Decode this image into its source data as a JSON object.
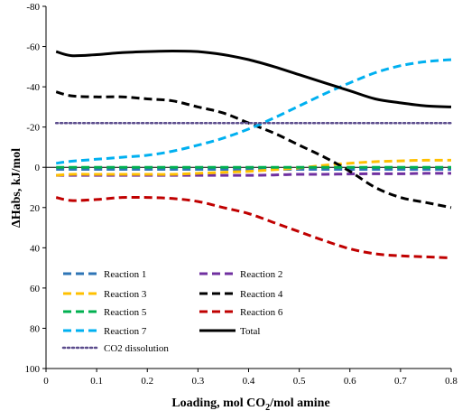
{
  "chart_data": {
    "type": "line",
    "title": "",
    "xlabel": "Loading, mol CO",
    "xlabel_sub": "2",
    "xlabel_tail": "/mol amine",
    "ylabel": "ΔHabs, kJ/mol",
    "xlim": [
      0,
      0.8
    ],
    "ylim": [
      -80,
      100
    ],
    "y_inverted": true,
    "grid": false,
    "legend_placement": "bottom-left",
    "x_ticks": [
      "0",
      "0.1",
      "0.2",
      "0.3",
      "0.4",
      "0.5",
      "0.6",
      "0.7",
      "0.8"
    ],
    "y_ticks": [
      "-80",
      "-60",
      "-40",
      "-20",
      "0",
      "20",
      "40",
      "60",
      "80",
      "100"
    ],
    "x": [
      0.02,
      0.05,
      0.1,
      0.15,
      0.2,
      0.25,
      0.3,
      0.35,
      0.4,
      0.45,
      0.5,
      0.55,
      0.6,
      0.65,
      0.7,
      0.75,
      0.8
    ],
    "series": [
      {
        "name": "Reaction 1",
        "color": "#2E75B6",
        "dash": "dash",
        "values": [
          1,
          1,
          1,
          1,
          1,
          1,
          1,
          1,
          1,
          1,
          1,
          1,
          1,
          1,
          1,
          1,
          1
        ]
      },
      {
        "name": "Reaction 2",
        "color": "#7030A0",
        "dash": "dash",
        "values": [
          4,
          4,
          4,
          4,
          4,
          4,
          4,
          4,
          4,
          3.8,
          3.5,
          3.5,
          3.3,
          3.2,
          3.2,
          3,
          3
        ]
      },
      {
        "name": "Reaction 3",
        "color": "#FFC000",
        "dash": "dash",
        "values": [
          4,
          3.5,
          3.5,
          3.5,
          3.5,
          3.5,
          3.0,
          2.5,
          2,
          1.2,
          0.3,
          -1,
          -2,
          -2.8,
          -3.2,
          -3.5,
          -3.5
        ]
      },
      {
        "name": "Reaction 4",
        "color": "#000000",
        "dash": "dash",
        "values": [
          -37.5,
          -35.5,
          -35,
          -35,
          -34,
          -33,
          -30,
          -27,
          -22,
          -17,
          -11,
          -5,
          2,
          10,
          15,
          17.5,
          20
        ]
      },
      {
        "name": "Reaction 5",
        "color": "#00B050",
        "dash": "dash",
        "values": [
          0,
          0,
          0,
          0,
          0,
          0,
          0,
          0,
          0,
          0,
          0,
          0,
          0,
          0,
          0,
          0,
          0
        ]
      },
      {
        "name": "Reaction 6",
        "color": "#C00000",
        "dash": "dash",
        "values": [
          15,
          16.5,
          16,
          15,
          15,
          15.5,
          17,
          20,
          23,
          27.5,
          32,
          36.5,
          40.5,
          43,
          44,
          44.5,
          45
        ]
      },
      {
        "name": "Reaction 7",
        "color": "#00B0F0",
        "dash": "dash",
        "values": [
          -2,
          -3,
          -4,
          -5,
          -6,
          -8,
          -11,
          -14.5,
          -19,
          -24.5,
          -30.5,
          -36.5,
          -42,
          -47,
          -50.5,
          -52.5,
          -53.5
        ]
      },
      {
        "name": "Total",
        "color": "#000000",
        "dash": "solid",
        "values": [
          -57.5,
          -55.5,
          -56,
          -57,
          -57.5,
          -57.8,
          -57.5,
          -56,
          -53.5,
          -50,
          -46,
          -42,
          -38,
          -34,
          -32,
          -30.5,
          -30
        ]
      },
      {
        "name": "CO2 dissolution",
        "color": "#5B4C8C",
        "dash": "dot",
        "values": [
          -22,
          -22,
          -22,
          -22,
          -22,
          -22,
          -22,
          -22,
          -22,
          -22,
          -22,
          -22,
          -22,
          -22,
          -22,
          -22,
          -22
        ]
      }
    ]
  }
}
